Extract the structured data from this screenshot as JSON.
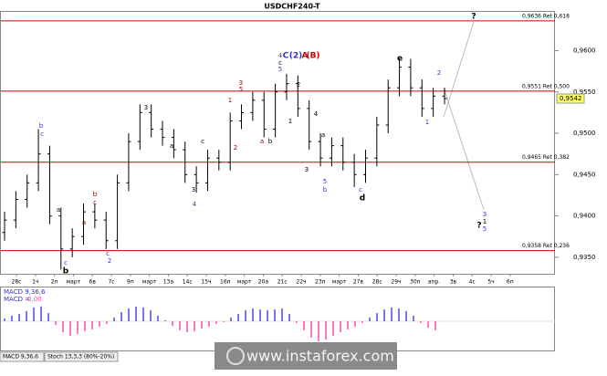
{
  "chart_data": [
    {
      "type": "ohlc",
      "title": "USDCHF240-T",
      "open": [
        0.938,
        0.9395,
        0.942,
        0.944,
        0.9475,
        0.94,
        0.936,
        0.9375,
        0.9405,
        0.9395,
        0.937,
        0.944,
        0.949,
        0.9525,
        0.9505,
        0.9495,
        0.948,
        0.945,
        0.944,
        0.947,
        0.9465,
        0.9515,
        0.9525,
        0.954,
        0.9505,
        0.955,
        0.956,
        0.953,
        0.949,
        0.947,
        0.9485,
        0.9465,
        0.945,
        0.947,
        0.951,
        0.9555,
        0.958,
        0.9555,
        0.953,
        0.9545
      ],
      "high": [
        0.9405,
        0.943,
        0.945,
        0.9505,
        0.9485,
        0.941,
        0.9385,
        0.9415,
        0.9415,
        0.9405,
        0.945,
        0.95,
        0.9535,
        0.9535,
        0.9515,
        0.9505,
        0.949,
        0.946,
        0.948,
        0.948,
        0.9525,
        0.9535,
        0.955,
        0.955,
        0.956,
        0.9572,
        0.957,
        0.954,
        0.95,
        0.9495,
        0.9495,
        0.9475,
        0.948,
        0.952,
        0.9565,
        0.959,
        0.959,
        0.9565,
        0.9555,
        0.9555
      ],
      "low": [
        0.937,
        0.9385,
        0.941,
        0.943,
        0.939,
        0.9335,
        0.935,
        0.9365,
        0.9385,
        0.936,
        0.936,
        0.943,
        0.948,
        0.9495,
        0.9485,
        0.947,
        0.944,
        0.9428,
        0.943,
        0.9455,
        0.9455,
        0.9505,
        0.9515,
        0.9495,
        0.9495,
        0.954,
        0.952,
        0.948,
        0.946,
        0.946,
        0.9455,
        0.9435,
        0.944,
        0.946,
        0.95,
        0.9545,
        0.9545,
        0.952,
        0.952,
        0.9535
      ],
      "close": [
        0.9395,
        0.942,
        0.944,
        0.9475,
        0.94,
        0.936,
        0.9375,
        0.9405,
        0.9395,
        0.937,
        0.944,
        0.949,
        0.9525,
        0.9505,
        0.9495,
        0.948,
        0.945,
        0.944,
        0.947,
        0.9465,
        0.9515,
        0.9525,
        0.954,
        0.9505,
        0.955,
        0.956,
        0.953,
        0.949,
        0.947,
        0.9485,
        0.9465,
        0.945,
        0.947,
        0.951,
        0.9555,
        0.958,
        0.9555,
        0.953,
        0.9545,
        0.9542
      ],
      "color": "#000000",
      "ylim": [
        0.933,
        0.9648
      ],
      "yticks": [
        {
          "value": 0.935,
          "label": "0,9350"
        },
        {
          "value": 0.94,
          "label": "0,9400"
        },
        {
          "value": 0.945,
          "label": "0,9450"
        },
        {
          "value": 0.95,
          "label": "0,9500"
        },
        {
          "value": 0.955,
          "label": "0,9550"
        },
        {
          "value": 0.96,
          "label": "0,9600"
        }
      ],
      "last_price": {
        "value": 0.9542,
        "label": "0,9542"
      },
      "levels": [
        {
          "value": 0.9636,
          "label": "0,9636 Ret 0,618"
        },
        {
          "value": 0.9551,
          "label": "0,9551 Ret 0,500"
        },
        {
          "value": 0.9465,
          "label": "0,9465 Ret 0,382"
        },
        {
          "value": 0.9358,
          "label": "0,9358 Ret 0,236"
        }
      ],
      "level_color": "#cc0000",
      "x_labels": [
        "28с",
        "1ч",
        "2п",
        "март",
        "6в",
        "7с",
        "9п",
        "март",
        "13а",
        "14с",
        "15ч",
        "16п",
        "март",
        "20а",
        "21с",
        "22ч",
        "23п",
        "март",
        "27в",
        "28с",
        "29ч",
        "30п",
        "апр.",
        "3в",
        "4с",
        "5ч",
        "6п"
      ],
      "annotations": [
        {
          "text": "b",
          "color": "#3333cc"
        },
        {
          "text": "c",
          "color": "#3333cc"
        },
        {
          "text": "a",
          "color": "#000000"
        },
        {
          "text": "c",
          "color": "#3333cc"
        },
        {
          "text": "b",
          "color": "#000000"
        },
        {
          "text": "b",
          "color": "#990000"
        },
        {
          "text": "c",
          "color": "#990000"
        },
        {
          "text": "a",
          "color": "#990000"
        },
        {
          "text": "c",
          "color": "#3333cc"
        },
        {
          "text": "2",
          "color": "#3333cc"
        },
        {
          "text": "3",
          "color": "#000000"
        },
        {
          "text": "a",
          "color": "#000000"
        },
        {
          "text": "c",
          "color": "#000000"
        },
        {
          "text": "3",
          "color": "#000000"
        },
        {
          "text": "4",
          "color": "#3333cc"
        },
        {
          "text": "2",
          "color": "#990000"
        },
        {
          "text": "3",
          "color": "#990000"
        },
        {
          "text": "5",
          "color": "#990000"
        },
        {
          "text": "1",
          "color": "#990000"
        },
        {
          "text": "a",
          "color": "#990000"
        },
        {
          "text": "b",
          "color": "#000000"
        },
        {
          "text": "4",
          "color": "#3333cc"
        },
        {
          "text": "C",
          "color": "#3333cc"
        },
        {
          "text": "(2)",
          "color": "#3333cc"
        },
        {
          "text": "A",
          "color": "#cc0000"
        },
        {
          "text": "(B)",
          "color": "#cc0000"
        },
        {
          "text": "c",
          "color": "#000000"
        },
        {
          "text": "5",
          "color": "#3333cc"
        },
        {
          "text": "2",
          "color": "#000000"
        },
        {
          "text": "1",
          "color": "#000000"
        },
        {
          "text": "4",
          "color": "#000000"
        },
        {
          "text": "3",
          "color": "#000000"
        },
        {
          "text": "a",
          "color": "#000000"
        },
        {
          "text": "5",
          "color": "#3333cc"
        },
        {
          "text": "b",
          "color": "#3333cc"
        },
        {
          "text": "c",
          "color": "#3333cc"
        },
        {
          "text": "d",
          "color": "#000000"
        },
        {
          "text": "e",
          "color": "#000000"
        },
        {
          "text": "2",
          "color": "#3333cc"
        },
        {
          "text": "1",
          "color": "#3333cc"
        },
        {
          "text": "?",
          "color": "#000000"
        },
        {
          "text": "?",
          "color": "#000000"
        },
        {
          "text": "3",
          "color": "#3333cc"
        },
        {
          "text": "1",
          "color": "#000000"
        },
        {
          "text": "5",
          "color": "#3333cc"
        }
      ]
    },
    {
      "type": "histogram",
      "title": "MACD 9,36,6",
      "readout_name": "MACD =",
      "readout_value": "0,00",
      "values": [
        0.0003,
        0.0006,
        0.0008,
        0.0011,
        0.0015,
        0.0016,
        0.0009,
        -0.0004,
        -0.0012,
        -0.0016,
        -0.0014,
        -0.0011,
        -0.0009,
        -0.0006,
        -0.0003,
        0.0004,
        0.001,
        0.0014,
        0.0016,
        0.0015,
        0.0012,
        0.0006,
        0.0001,
        -0.0005,
        -0.001,
        -0.0012,
        -0.0011,
        -0.0008,
        -0.0006,
        -0.0003,
        -0.0001,
        0.0004,
        0.0008,
        0.0012,
        0.0014,
        0.0013,
        0.0012,
        0.0013,
        0.0014,
        0.0008,
        -0.0002,
        -0.001,
        -0.0018,
        -0.0022,
        -0.002,
        -0.0016,
        -0.0012,
        -0.0009,
        -0.0006,
        -0.0002,
        0.0004,
        0.0009,
        0.0013,
        0.0015,
        0.0014,
        0.0011,
        0.0006,
        -0.0002,
        -0.0007,
        -0.001
      ],
      "positive_color": "#7777ee",
      "negative_color": "#ff77cc"
    }
  ],
  "footer": {
    "tabs": [
      "MACD 9,36,6",
      "Stoch 13,3,3 (80%-20%)"
    ],
    "watermark": "www.instaforex.com"
  }
}
